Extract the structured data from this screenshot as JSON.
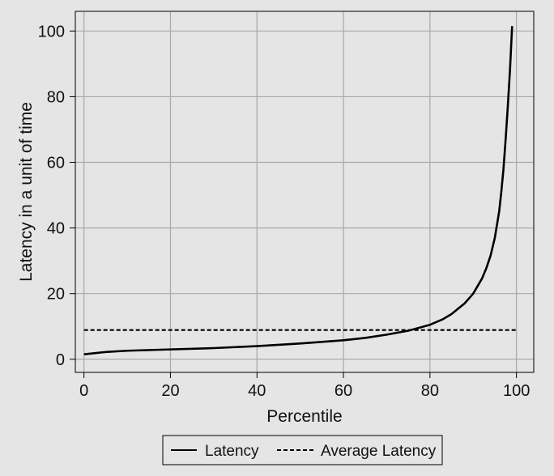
{
  "chart_data": {
    "type": "line",
    "title": "",
    "xlabel": "Percentile",
    "ylabel": "Latency in a unit of time",
    "xlim": [
      -2,
      104
    ],
    "ylim": [
      -4,
      106
    ],
    "xticks": [
      0,
      20,
      40,
      60,
      80,
      100
    ],
    "yticks": [
      0,
      20,
      40,
      60,
      80,
      100
    ],
    "grid": true,
    "legend_position": "bottom",
    "series": [
      {
        "name": "Latency",
        "style": "solid",
        "x": [
          0,
          5,
          10,
          20,
          30,
          40,
          50,
          60,
          65,
          70,
          75,
          80,
          83,
          85,
          88,
          90,
          92,
          93,
          94,
          95,
          96,
          96.5,
          97,
          97.5,
          98,
          98.5,
          99
        ],
        "y": [
          1.5,
          2.2,
          2.6,
          3.0,
          3.4,
          4.0,
          4.8,
          5.8,
          6.5,
          7.5,
          8.7,
          10.5,
          12.2,
          13.8,
          17.0,
          20.0,
          24.5,
          27.6,
          31.5,
          37.0,
          45.0,
          51.0,
          58.0,
          67.0,
          77.0,
          88.0,
          101.5
        ]
      },
      {
        "name": "Average Latency",
        "style": "dashed",
        "x": [
          0,
          100
        ],
        "y": [
          8.9,
          8.9
        ]
      }
    ]
  },
  "colors": {
    "background": "#e5e5e5",
    "plot_area": "#e5e5e5",
    "grid": "#a8a8a8",
    "line": "#000000"
  }
}
